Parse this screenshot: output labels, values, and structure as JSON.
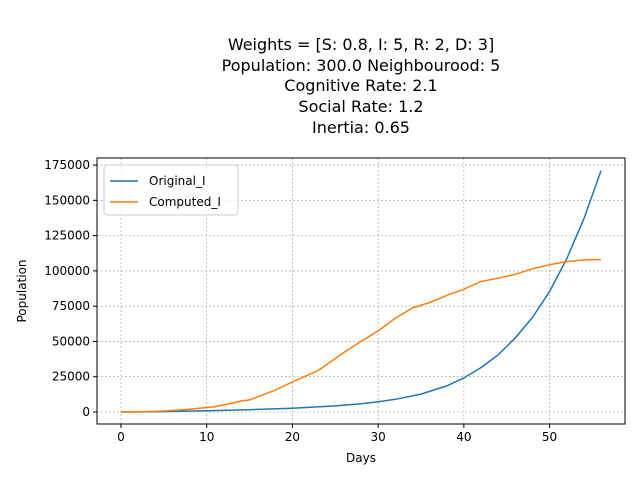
{
  "chart_data": {
    "type": "line",
    "title_lines": [
      "Weights = [S: 0.8, I: 5, R: 2, D: 3]",
      "Population: 300.0  Neighbourood: 5",
      "Cognitive Rate: 2.1",
      "Social Rate: 1.2",
      "Inertia: 0.65"
    ],
    "xlabel": "Days",
    "ylabel": "Population",
    "xlim": [
      -2.8,
      58.8
    ],
    "ylim": [
      -8500,
      180000
    ],
    "xticks": [
      0,
      10,
      20,
      30,
      40,
      50
    ],
    "yticks": [
      0,
      25000,
      50000,
      75000,
      100000,
      125000,
      150000,
      175000
    ],
    "grid": true,
    "legend_position": "upper-left",
    "series": [
      {
        "name": "Original_I",
        "color": "#1f77b4",
        "x": [
          0,
          5,
          10,
          15,
          20,
          25,
          28,
          30,
          32,
          35,
          38,
          40,
          42,
          44,
          46,
          48,
          50,
          52,
          54,
          56
        ],
        "y": [
          0,
          300,
          900,
          1600,
          2700,
          4300,
          5800,
          7200,
          9000,
          12700,
          18500,
          24200,
          31500,
          40500,
          52500,
          67000,
          85500,
          108500,
          137000,
          171000
        ]
      },
      {
        "name": "Computed_I",
        "color": "#ff7f0e",
        "x": [
          0,
          3,
          5,
          8,
          11,
          13,
          14,
          15,
          18,
          20,
          23,
          26,
          28,
          30,
          32,
          34,
          36,
          38,
          40,
          42,
          44,
          46,
          48,
          50,
          52,
          54,
          55,
          56
        ],
        "y": [
          0,
          300,
          700,
          2000,
          3800,
          6300,
          7800,
          8600,
          15500,
          21300,
          29400,
          42200,
          50000,
          57500,
          66500,
          73700,
          77600,
          82600,
          87000,
          92500,
          94800,
          97600,
          101500,
          104400,
          106600,
          107800,
          108000,
          108000
        ]
      }
    ]
  }
}
